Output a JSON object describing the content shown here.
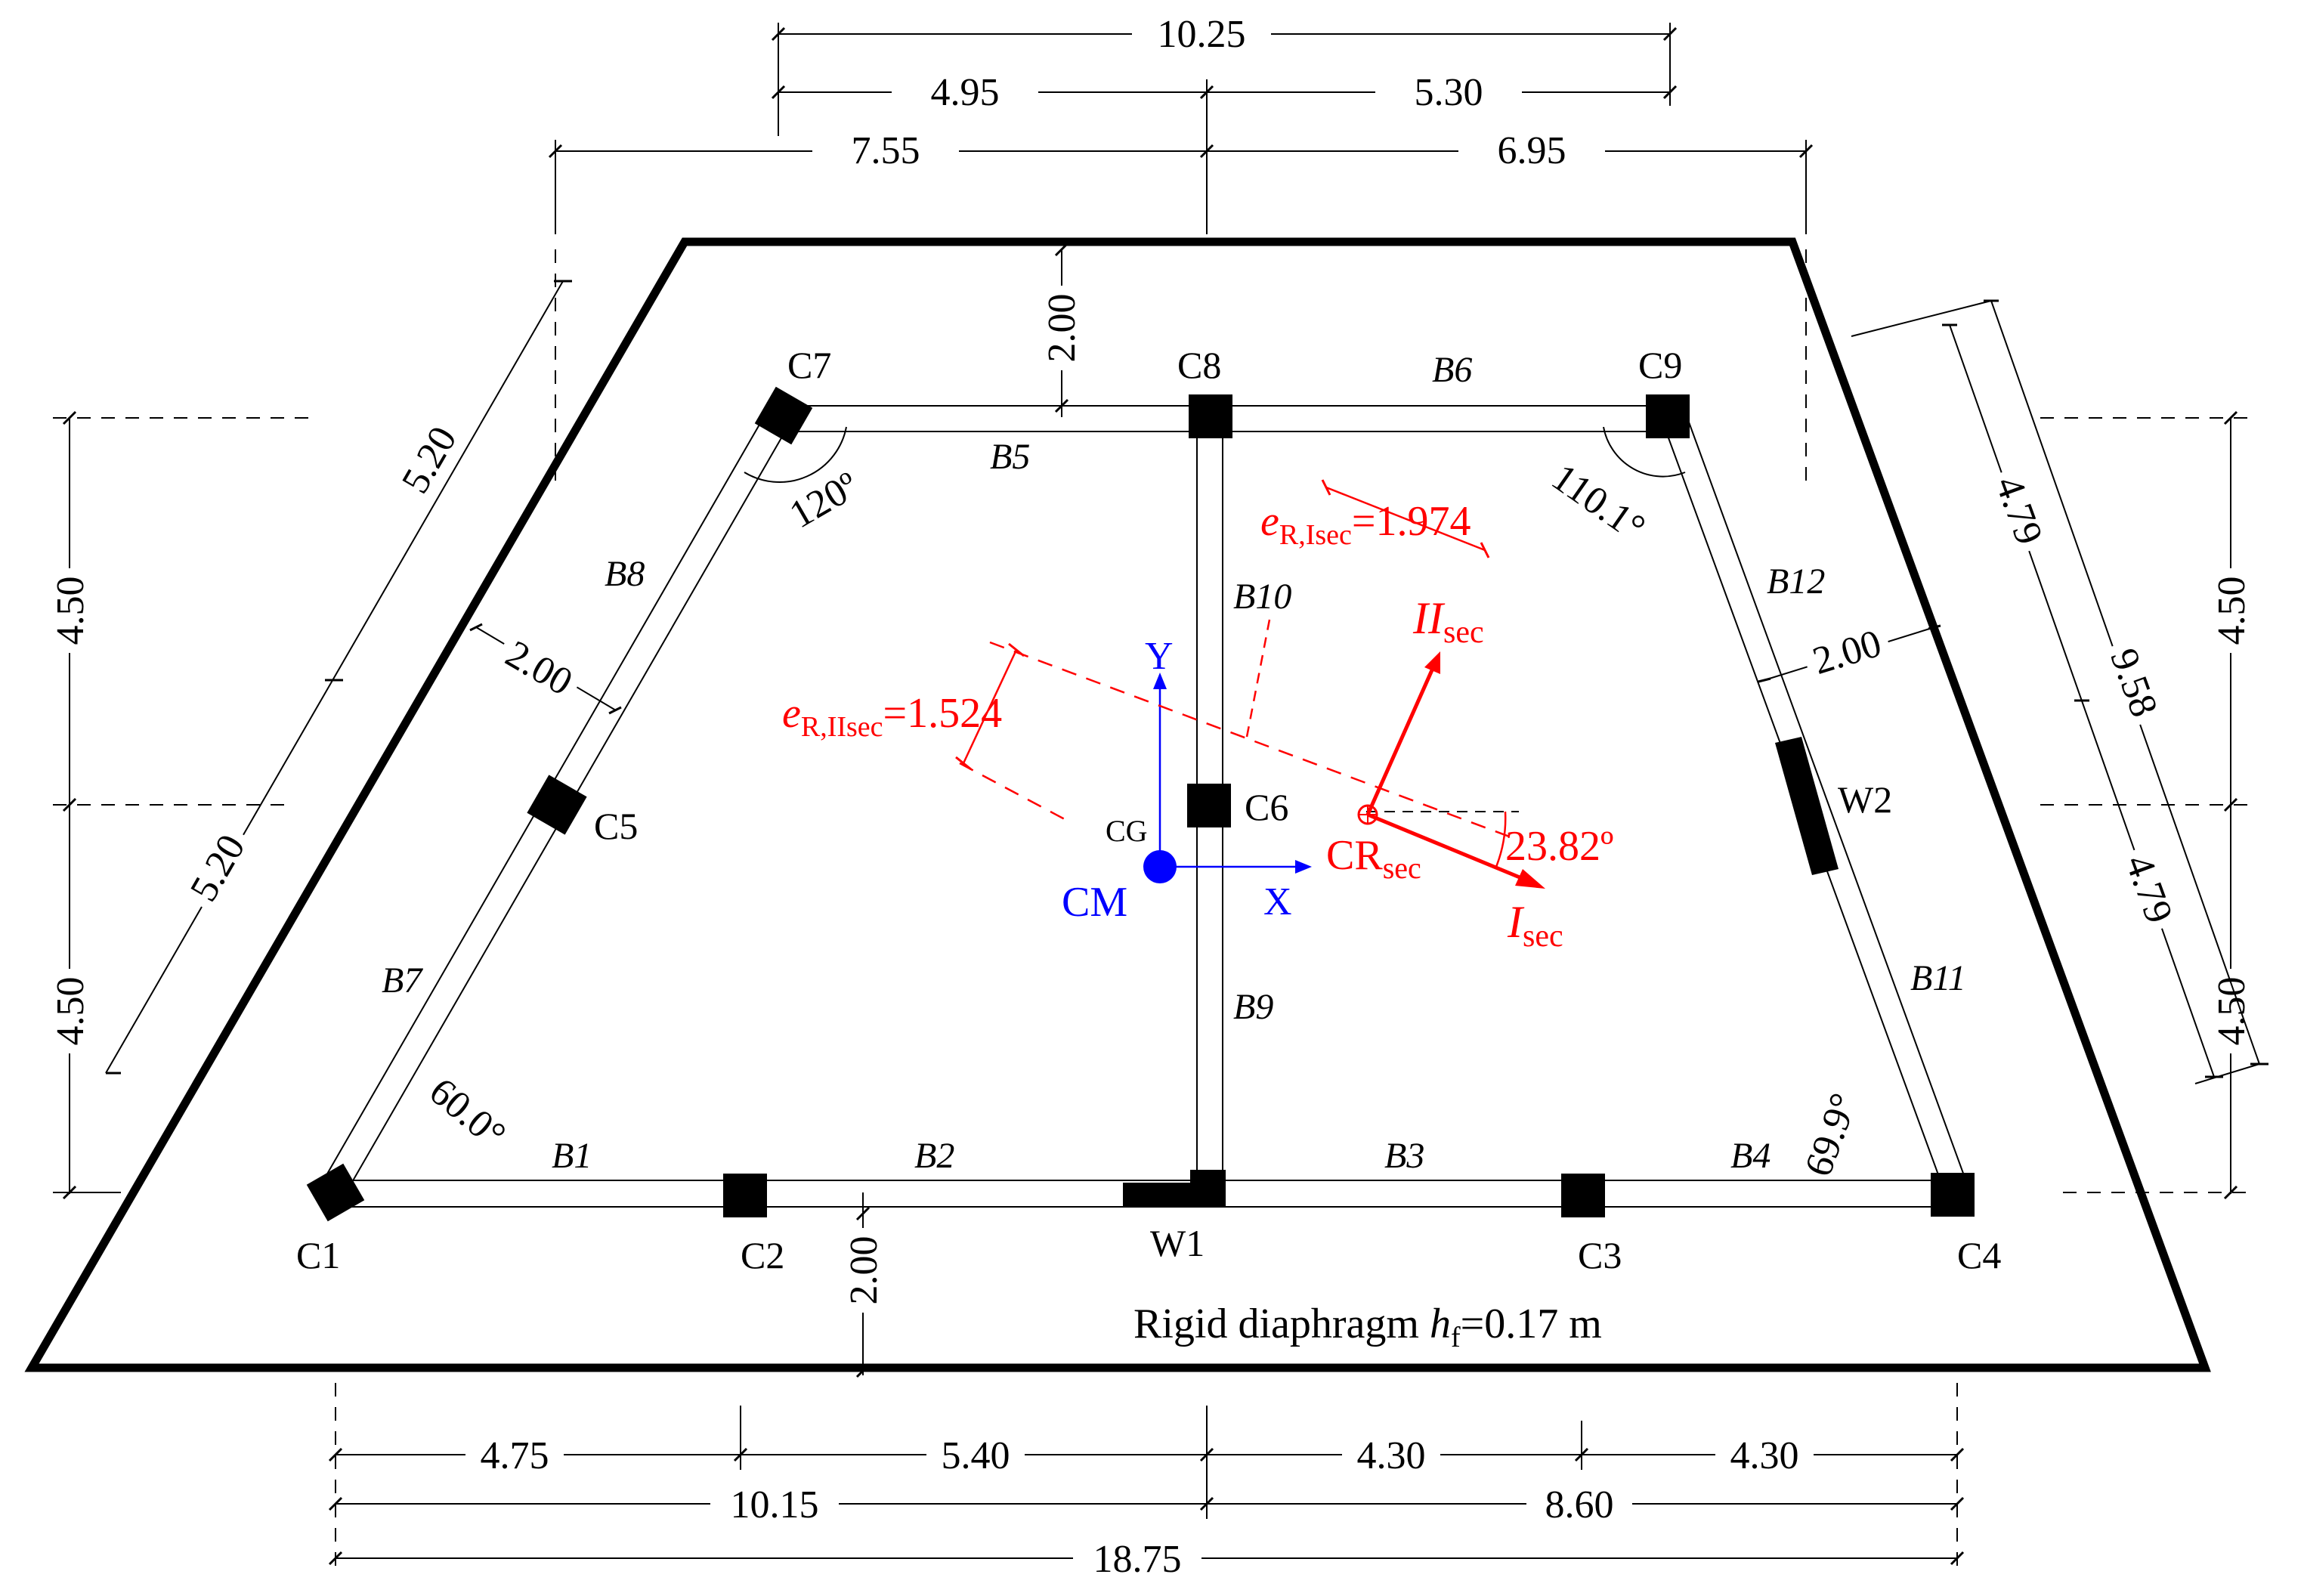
{
  "dimensions": {
    "top_total": "10.25",
    "top_left": "4.95",
    "top_right": "5.30",
    "top2_left": "7.55",
    "top2_right": "6.95",
    "vert_top_offset": "2.00",
    "left_upper": "4.50",
    "left_lower": "4.50",
    "right_upper": "4.50",
    "right_lower": "4.50",
    "slant_left_upper": "5.20",
    "slant_left_lower": "5.20",
    "slant_left_offset": "2.00",
    "slant_right_upper": "4.79",
    "slant_right_lower": "4.79",
    "slant_right_total": "9.58",
    "slant_right_offset": "2.00",
    "bottom_offset": "2.00",
    "bottom_1": "4.75",
    "bottom_2": "5.40",
    "bottom_3": "4.30",
    "bottom_4": "4.30",
    "bottom_left_total": "10.15",
    "bottom_right_total": "8.60",
    "bottom_total": "18.75"
  },
  "columns": [
    "C1",
    "C2",
    "C3",
    "C4",
    "C5",
    "C6",
    "C7",
    "C8",
    "C9"
  ],
  "walls": [
    "W1",
    "W2"
  ],
  "beams": [
    "B1",
    "B2",
    "B3",
    "B4",
    "B5",
    "B6",
    "B7",
    "B8",
    "B9",
    "B10",
    "B11",
    "B12"
  ],
  "angles": {
    "c7": "120º",
    "c9": "110.1°",
    "c1": "60.0°",
    "c4": "69.9°",
    "cr_axis": "23.82º"
  },
  "centers": {
    "cg": "CG",
    "cm": "CM",
    "cr": "CR",
    "cr_sub": "sec",
    "axis_x": "X",
    "axis_y": "Y"
  },
  "eccentricity": {
    "e_isec_sym": "e",
    "e_isec_sub": "R,Isec",
    "e_isec_val": "=1.974",
    "e_iisec_sym": "e",
    "e_iisec_sub": "R,IIsec",
    "e_iisec_val": "=1.524"
  },
  "principal_axes": {
    "i_main": "I",
    "i_sub": "sec",
    "ii_main": "II",
    "ii_sub": "sec"
  },
  "caption": {
    "prefix": "Rigid diaphragm ",
    "symbol": "h",
    "sub": "f",
    "value": "=0.17 m"
  },
  "colors": {
    "structure": "#000000",
    "resistance_center": "#ff0000",
    "mass_center": "#0000ff"
  }
}
